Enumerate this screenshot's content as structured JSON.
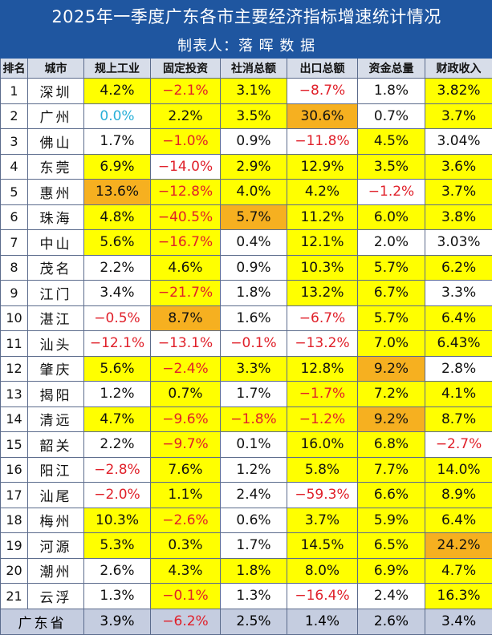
{
  "title": "2025年一季度广东各市主要经济指标增速统计情况",
  "subtitle": "制表人：落 晖 数 据",
  "headers": [
    "排名",
    "城市",
    "规上工业",
    "固定投资",
    "社消总额",
    "出口总额",
    "资金总量",
    "财政收入"
  ],
  "highlight_colors": {
    "yellow": "#ffff00",
    "orange": "#f6b020",
    "negative_text": "#e0202a",
    "zero_text": "#2ab0d8"
  },
  "rows": [
    {
      "rank": "1",
      "city": "深圳",
      "v": [
        "4.2%",
        "−2.1%",
        "3.1%",
        "−8.7%",
        "1.8%",
        "3.82%"
      ],
      "bg": [
        "y",
        "y",
        "y",
        "w",
        "w",
        "y"
      ]
    },
    {
      "rank": "2",
      "city": "广州",
      "v": [
        "0.0%",
        "2.2%",
        "3.5%",
        "30.6%",
        "0.7%",
        "3.7%"
      ],
      "bg": [
        "w",
        "y",
        "y",
        "o",
        "w",
        "y"
      ]
    },
    {
      "rank": "3",
      "city": "佛山",
      "v": [
        "1.7%",
        "−1.0%",
        "0.9%",
        "−11.8%",
        "4.5%",
        "3.04%"
      ],
      "bg": [
        "w",
        "y",
        "w",
        "w",
        "y",
        "w"
      ]
    },
    {
      "rank": "4",
      "city": "东莞",
      "v": [
        "6.9%",
        "−14.0%",
        "2.9%",
        "12.9%",
        "3.5%",
        "3.6%"
      ],
      "bg": [
        "y",
        "w",
        "y",
        "y",
        "y",
        "y"
      ]
    },
    {
      "rank": "5",
      "city": "惠州",
      "v": [
        "13.6%",
        "−12.8%",
        "4.0%",
        "4.2%",
        "−1.2%",
        "3.7%"
      ],
      "bg": [
        "o",
        "y",
        "y",
        "y",
        "w",
        "y"
      ]
    },
    {
      "rank": "6",
      "city": "珠海",
      "v": [
        "4.8%",
        "−40.5%",
        "5.7%",
        "11.2%",
        "6.0%",
        "3.8%"
      ],
      "bg": [
        "y",
        "y",
        "o",
        "y",
        "y",
        "y"
      ]
    },
    {
      "rank": "7",
      "city": "中山",
      "v": [
        "5.6%",
        "−16.7%",
        "0.4%",
        "12.1%",
        "2.0%",
        "3.03%"
      ],
      "bg": [
        "y",
        "y",
        "w",
        "y",
        "w",
        "w"
      ]
    },
    {
      "rank": "8",
      "city": "茂名",
      "v": [
        "2.2%",
        "4.6%",
        "0.9%",
        "10.3%",
        "5.7%",
        "6.2%"
      ],
      "bg": [
        "w",
        "y",
        "w",
        "y",
        "y",
        "y"
      ]
    },
    {
      "rank": "9",
      "city": "江门",
      "v": [
        "3.4%",
        "−21.7%",
        "1.8%",
        "13.2%",
        "6.7%",
        "3.3%"
      ],
      "bg": [
        "w",
        "y",
        "w",
        "y",
        "y",
        "w"
      ]
    },
    {
      "rank": "10",
      "city": "湛江",
      "v": [
        "−0.5%",
        "8.7%",
        "1.6%",
        "−6.7%",
        "5.7%",
        "6.4%"
      ],
      "bg": [
        "w",
        "o",
        "w",
        "w",
        "y",
        "y"
      ]
    },
    {
      "rank": "11",
      "city": "汕头",
      "v": [
        "−12.1%",
        "−13.1%",
        "−0.1%",
        "−13.2%",
        "7.0%",
        "6.43%"
      ],
      "bg": [
        "w",
        "w",
        "w",
        "w",
        "y",
        "y"
      ]
    },
    {
      "rank": "12",
      "city": "肇庆",
      "v": [
        "5.6%",
        "−2.4%",
        "3.3%",
        "12.8%",
        "9.2%",
        "2.8%"
      ],
      "bg": [
        "y",
        "y",
        "y",
        "y",
        "o",
        "w"
      ]
    },
    {
      "rank": "13",
      "city": "揭阳",
      "v": [
        "1.2%",
        "0.7%",
        "1.7%",
        "−1.7%",
        "7.2%",
        "4.1%"
      ],
      "bg": [
        "w",
        "y",
        "w",
        "y",
        "y",
        "y"
      ]
    },
    {
      "rank": "14",
      "city": "清远",
      "v": [
        "4.7%",
        "−9.6%",
        "−1.8%",
        "−1.2%",
        "9.2%",
        "8.7%"
      ],
      "bg": [
        "y",
        "y",
        "y",
        "y",
        "o",
        "y"
      ]
    },
    {
      "rank": "15",
      "city": "韶关",
      "v": [
        "2.2%",
        "−9.7%",
        "0.1%",
        "16.0%",
        "6.8%",
        "−2.7%"
      ],
      "bg": [
        "w",
        "y",
        "w",
        "y",
        "y",
        "w"
      ]
    },
    {
      "rank": "16",
      "city": "阳江",
      "v": [
        "−2.8%",
        "7.6%",
        "1.2%",
        "5.8%",
        "7.7%",
        "14.0%"
      ],
      "bg": [
        "w",
        "y",
        "w",
        "y",
        "y",
        "y"
      ]
    },
    {
      "rank": "17",
      "city": "汕尾",
      "v": [
        "−2.0%",
        "1.1%",
        "2.4%",
        "−59.3%",
        "6.6%",
        "8.9%"
      ],
      "bg": [
        "w",
        "y",
        "w",
        "w",
        "y",
        "y"
      ]
    },
    {
      "rank": "18",
      "city": "梅州",
      "v": [
        "10.3%",
        "−2.6%",
        "0.6%",
        "3.7%",
        "5.9%",
        "6.4%"
      ],
      "bg": [
        "y",
        "y",
        "w",
        "y",
        "y",
        "y"
      ]
    },
    {
      "rank": "19",
      "city": "河源",
      "v": [
        "5.3%",
        "0.3%",
        "1.7%",
        "14.5%",
        "6.5%",
        "24.2%"
      ],
      "bg": [
        "y",
        "y",
        "w",
        "y",
        "y",
        "o"
      ]
    },
    {
      "rank": "20",
      "city": "潮州",
      "v": [
        "2.6%",
        "4.3%",
        "1.8%",
        "8.0%",
        "6.9%",
        "4.7%"
      ],
      "bg": [
        "w",
        "y",
        "y",
        "y",
        "y",
        "y"
      ]
    },
    {
      "rank": "21",
      "city": "云浮",
      "v": [
        "1.3%",
        "−0.1%",
        "1.3%",
        "−16.4%",
        "2.4%",
        "16.3%"
      ],
      "bg": [
        "w",
        "y",
        "w",
        "w",
        "w",
        "y"
      ]
    }
  ],
  "province": {
    "name": "广东省",
    "v": [
      "3.9%",
      "−6.2%",
      "2.5%",
      "1.4%",
      "2.6%",
      "3.4%"
    ]
  }
}
